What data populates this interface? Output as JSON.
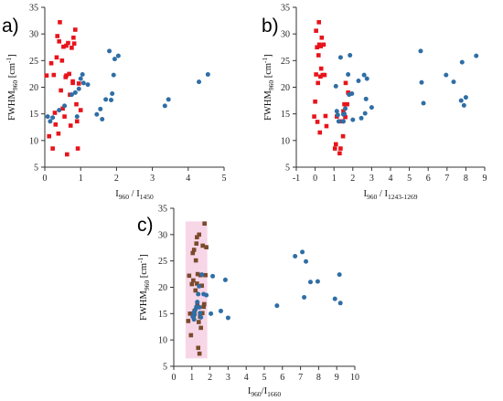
{
  "colors": {
    "red": "#e8141b",
    "blue": "#2f6ea5",
    "brown": "#7a4a2a",
    "pink_band": "#f6cfe4",
    "axis": "#333333"
  },
  "chart_data": [
    {
      "type": "scatter",
      "panel_label": "a)",
      "xlabel_main": "I",
      "xlabel_sub1": "960",
      "xlabel_mid": " / I",
      "xlabel_sub2": "1450",
      "ylabel_main": "FWHM",
      "ylabel_sub": "960",
      "ylabel_unit": " [cm",
      "ylabel_sup": "-1",
      "ylabel_end": "]",
      "xlim": [
        0,
        5
      ],
      "ylim": [
        5,
        35
      ],
      "xticks": [
        "0",
        "1",
        "2",
        "3",
        "4",
        "5"
      ],
      "yticks": [
        "5",
        "10",
        "15",
        "20",
        "25",
        "30",
        "35"
      ],
      "series": [
        {
          "marker": "square",
          "color": "#e8141b",
          "points": [
            [
              0.05,
              22.2
            ],
            [
              0.12,
              10.8
            ],
            [
              0.18,
              24.5
            ],
            [
              0.22,
              8.5
            ],
            [
              0.25,
              22.3
            ],
            [
              0.28,
              15.2
            ],
            [
              0.3,
              13.0
            ],
            [
              0.33,
              25.6
            ],
            [
              0.35,
              29.6
            ],
            [
              0.38,
              11.3
            ],
            [
              0.4,
              28.6
            ],
            [
              0.42,
              32.2
            ],
            [
              0.45,
              19.4
            ],
            [
              0.48,
              25.0
            ],
            [
              0.5,
              16.0
            ],
            [
              0.52,
              27.6
            ],
            [
              0.55,
              14.5
            ],
            [
              0.58,
              21.9
            ],
            [
              0.6,
              27.8
            ],
            [
              0.62,
              7.4
            ],
            [
              0.65,
              28.3
            ],
            [
              0.68,
              22.5
            ],
            [
              0.7,
              18.6
            ],
            [
              0.72,
              12.8
            ],
            [
              0.75,
              27.4
            ],
            [
              0.78,
              20.8
            ],
            [
              0.8,
              29.3
            ],
            [
              0.82,
              28.2
            ],
            [
              0.85,
              30.8
            ],
            [
              0.88,
              16.8
            ],
            [
              0.9,
              13.6
            ],
            [
              0.92,
              8.5
            ],
            [
              0.95,
              20.7
            ],
            [
              1.0,
              15.7
            ],
            [
              0.78,
              21.1
            ],
            [
              0.6,
              22.2
            ]
          ]
        },
        {
          "marker": "circle",
          "color": "#2f6ea5",
          "points": [
            [
              0.08,
              14.5
            ],
            [
              0.15,
              13.6
            ],
            [
              0.22,
              14.3
            ],
            [
              0.4,
              15.7
            ],
            [
              0.55,
              16.5
            ],
            [
              0.75,
              18.6
            ],
            [
              0.85,
              19.0
            ],
            [
              0.9,
              14.5
            ],
            [
              1.0,
              21.6
            ],
            [
              1.05,
              22.4
            ],
            [
              1.08,
              20.8
            ],
            [
              1.2,
              20.5
            ],
            [
              1.45,
              14.9
            ],
            [
              1.55,
              15.9
            ],
            [
              1.6,
              14.0
            ],
            [
              1.7,
              17.7
            ],
            [
              1.8,
              26.8
            ],
            [
              1.85,
              17.6
            ],
            [
              1.88,
              18.8
            ],
            [
              1.92,
              22.3
            ],
            [
              1.95,
              25.3
            ],
            [
              2.05,
              25.9
            ],
            [
              3.35,
              16.5
            ],
            [
              3.45,
              17.7
            ],
            [
              4.3,
              21.0
            ],
            [
              4.55,
              22.4
            ],
            [
              0.95,
              19.7
            ]
          ]
        }
      ]
    },
    {
      "type": "scatter",
      "panel_label": "b)",
      "xlabel_main": "I",
      "xlabel_sub1": "960",
      "xlabel_mid": " / I",
      "xlabel_sub2": "1243-1269",
      "ylabel_main": "FWHM",
      "ylabel_sub": "960",
      "ylabel_unit": " [cm",
      "ylabel_sup": "-1",
      "ylabel_end": "]",
      "xlim": [
        -1,
        9
      ],
      "ylim": [
        5,
        35
      ],
      "xticks": [
        "-1",
        "0",
        "1",
        "2",
        "3",
        "4",
        "5",
        "6",
        "7",
        "8",
        "9"
      ],
      "yticks": [
        "5",
        "10",
        "15",
        "20",
        "25",
        "30",
        "35"
      ],
      "series": [
        {
          "marker": "square",
          "color": "#e8141b",
          "points": [
            [
              -0.05,
              14.5
            ],
            [
              0.0,
              17.3
            ],
            [
              0.05,
              22.4
            ],
            [
              0.05,
              30.6
            ],
            [
              0.1,
              27.5
            ],
            [
              0.12,
              13.5
            ],
            [
              0.15,
              20.8
            ],
            [
              0.18,
              26.0
            ],
            [
              0.2,
              32.2
            ],
            [
              0.22,
              28.0
            ],
            [
              0.25,
              11.5
            ],
            [
              0.28,
              22.0
            ],
            [
              0.3,
              27.7
            ],
            [
              0.32,
              23.5
            ],
            [
              0.35,
              29.3
            ],
            [
              0.4,
              22.3
            ],
            [
              0.45,
              28.0
            ],
            [
              0.5,
              22.3
            ],
            [
              0.55,
              14.6
            ],
            [
              0.6,
              12.7
            ],
            [
              1.05,
              8.5
            ],
            [
              1.15,
              14.5
            ],
            [
              1.3,
              7.6
            ],
            [
              1.35,
              8.5
            ],
            [
              1.42,
              13.6
            ],
            [
              1.5,
              15.5
            ],
            [
              1.55,
              16.8
            ],
            [
              1.6,
              14.4
            ],
            [
              1.62,
              20.8
            ],
            [
              1.7,
              16.8
            ],
            [
              1.48,
              10.8
            ],
            [
              1.75,
              19.0
            ],
            [
              1.1,
              9.3
            ]
          ]
        },
        {
          "marker": "circle",
          "color": "#2f6ea5",
          "points": [
            [
              1.1,
              20.2
            ],
            [
              1.15,
              15.5
            ],
            [
              1.2,
              14.8
            ],
            [
              1.25,
              13.6
            ],
            [
              1.35,
              25.6
            ],
            [
              1.5,
              14.9
            ],
            [
              1.55,
              15.0
            ],
            [
              1.6,
              16.0
            ],
            [
              1.75,
              22.4
            ],
            [
              1.8,
              18.6
            ],
            [
              1.85,
              26.0
            ],
            [
              1.95,
              18.8
            ],
            [
              2.0,
              13.9
            ],
            [
              2.3,
              21.2
            ],
            [
              2.45,
              14.2
            ],
            [
              2.6,
              22.3
            ],
            [
              2.65,
              15.1
            ],
            [
              2.7,
              17.8
            ],
            [
              2.75,
              21.6
            ],
            [
              3.0,
              16.2
            ],
            [
              5.6,
              26.8
            ],
            [
              5.65,
              20.9
            ],
            [
              5.75,
              17.0
            ],
            [
              6.95,
              22.3
            ],
            [
              7.35,
              21.0
            ],
            [
              7.75,
              17.5
            ],
            [
              7.8,
              24.7
            ],
            [
              7.9,
              16.6
            ],
            [
              8.0,
              18.1
            ],
            [
              8.55,
              25.9
            ],
            [
              1.5,
              13.6
            ]
          ]
        }
      ]
    },
    {
      "type": "scatter",
      "panel_label": "c)",
      "xlabel_main": "I",
      "xlabel_sub1": "960",
      "xlabel_mid": "/I",
      "xlabel_sub2": "1660",
      "ylabel_main": "FWHM",
      "ylabel_sub": "960",
      "ylabel_unit": " [cm",
      "ylabel_sup": "-1",
      "ylabel_end": "]",
      "xlim": [
        0,
        10
      ],
      "ylim": [
        5,
        35
      ],
      "xticks": [
        "0",
        "1",
        "2",
        "3",
        "4",
        "5",
        "6",
        "7",
        "8",
        "9",
        "10"
      ],
      "yticks": [
        "5",
        "10",
        "15",
        "20",
        "25",
        "30",
        "35"
      ],
      "highlight_band": {
        "x": [
          0.65,
          1.85
        ],
        "y": [
          6.5,
          32.5
        ]
      },
      "series": [
        {
          "marker": "square",
          "color": "#7a4a2a",
          "points": [
            [
              0.8,
              13.6
            ],
            [
              0.85,
              22.2
            ],
            [
              0.9,
              15.0
            ],
            [
              0.95,
              10.9
            ],
            [
              1.0,
              20.6
            ],
            [
              1.05,
              26.5
            ],
            [
              1.08,
              21.3
            ],
            [
              1.1,
              14.6
            ],
            [
              1.12,
              27.1
            ],
            [
              1.15,
              15.5
            ],
            [
              1.2,
              19.4
            ],
            [
              1.22,
              25.1
            ],
            [
              1.25,
              28.3
            ],
            [
              1.28,
              29.5
            ],
            [
              1.3,
              16.8
            ],
            [
              1.32,
              22.5
            ],
            [
              1.35,
              8.5
            ],
            [
              1.38,
              13.4
            ],
            [
              1.4,
              30.0
            ],
            [
              1.42,
              7.4
            ],
            [
              1.45,
              14.4
            ],
            [
              1.48,
              22.3
            ],
            [
              1.5,
              12.3
            ],
            [
              1.55,
              20.3
            ],
            [
              1.6,
              27.9
            ],
            [
              1.65,
              16.3
            ],
            [
              1.7,
              32.1
            ],
            [
              1.75,
              22.3
            ],
            [
              1.8,
              27.6
            ],
            [
              1.58,
              15.1
            ],
            [
              1.68,
              16.8
            ],
            [
              1.28,
              20.7
            ]
          ]
        },
        {
          "marker": "circle",
          "color": "#2f6ea5",
          "points": [
            [
              1.05,
              14.4
            ],
            [
              1.1,
              15.2
            ],
            [
              1.15,
              14.8
            ],
            [
              1.2,
              15.8
            ],
            [
              1.25,
              16.3
            ],
            [
              1.3,
              17.2
            ],
            [
              1.35,
              18.7
            ],
            [
              1.4,
              20.2
            ],
            [
              1.45,
              15.1
            ],
            [
              1.5,
              14.3
            ],
            [
              1.55,
              22.4
            ],
            [
              1.65,
              18.7
            ],
            [
              1.8,
              18.5
            ],
            [
              2.05,
              15.0
            ],
            [
              2.15,
              22.1
            ],
            [
              2.6,
              15.5
            ],
            [
              2.85,
              21.4
            ],
            [
              3.0,
              14.2
            ],
            [
              5.7,
              16.5
            ],
            [
              6.7,
              25.9
            ],
            [
              7.1,
              26.7
            ],
            [
              7.2,
              18.1
            ],
            [
              7.3,
              24.9
            ],
            [
              7.55,
              21.0
            ],
            [
              7.95,
              21.1
            ],
            [
              8.9,
              17.8
            ],
            [
              9.15,
              22.4
            ],
            [
              9.2,
              17.0
            ],
            [
              1.12,
              13.9
            ],
            [
              1.42,
              16.2
            ]
          ]
        }
      ]
    }
  ]
}
